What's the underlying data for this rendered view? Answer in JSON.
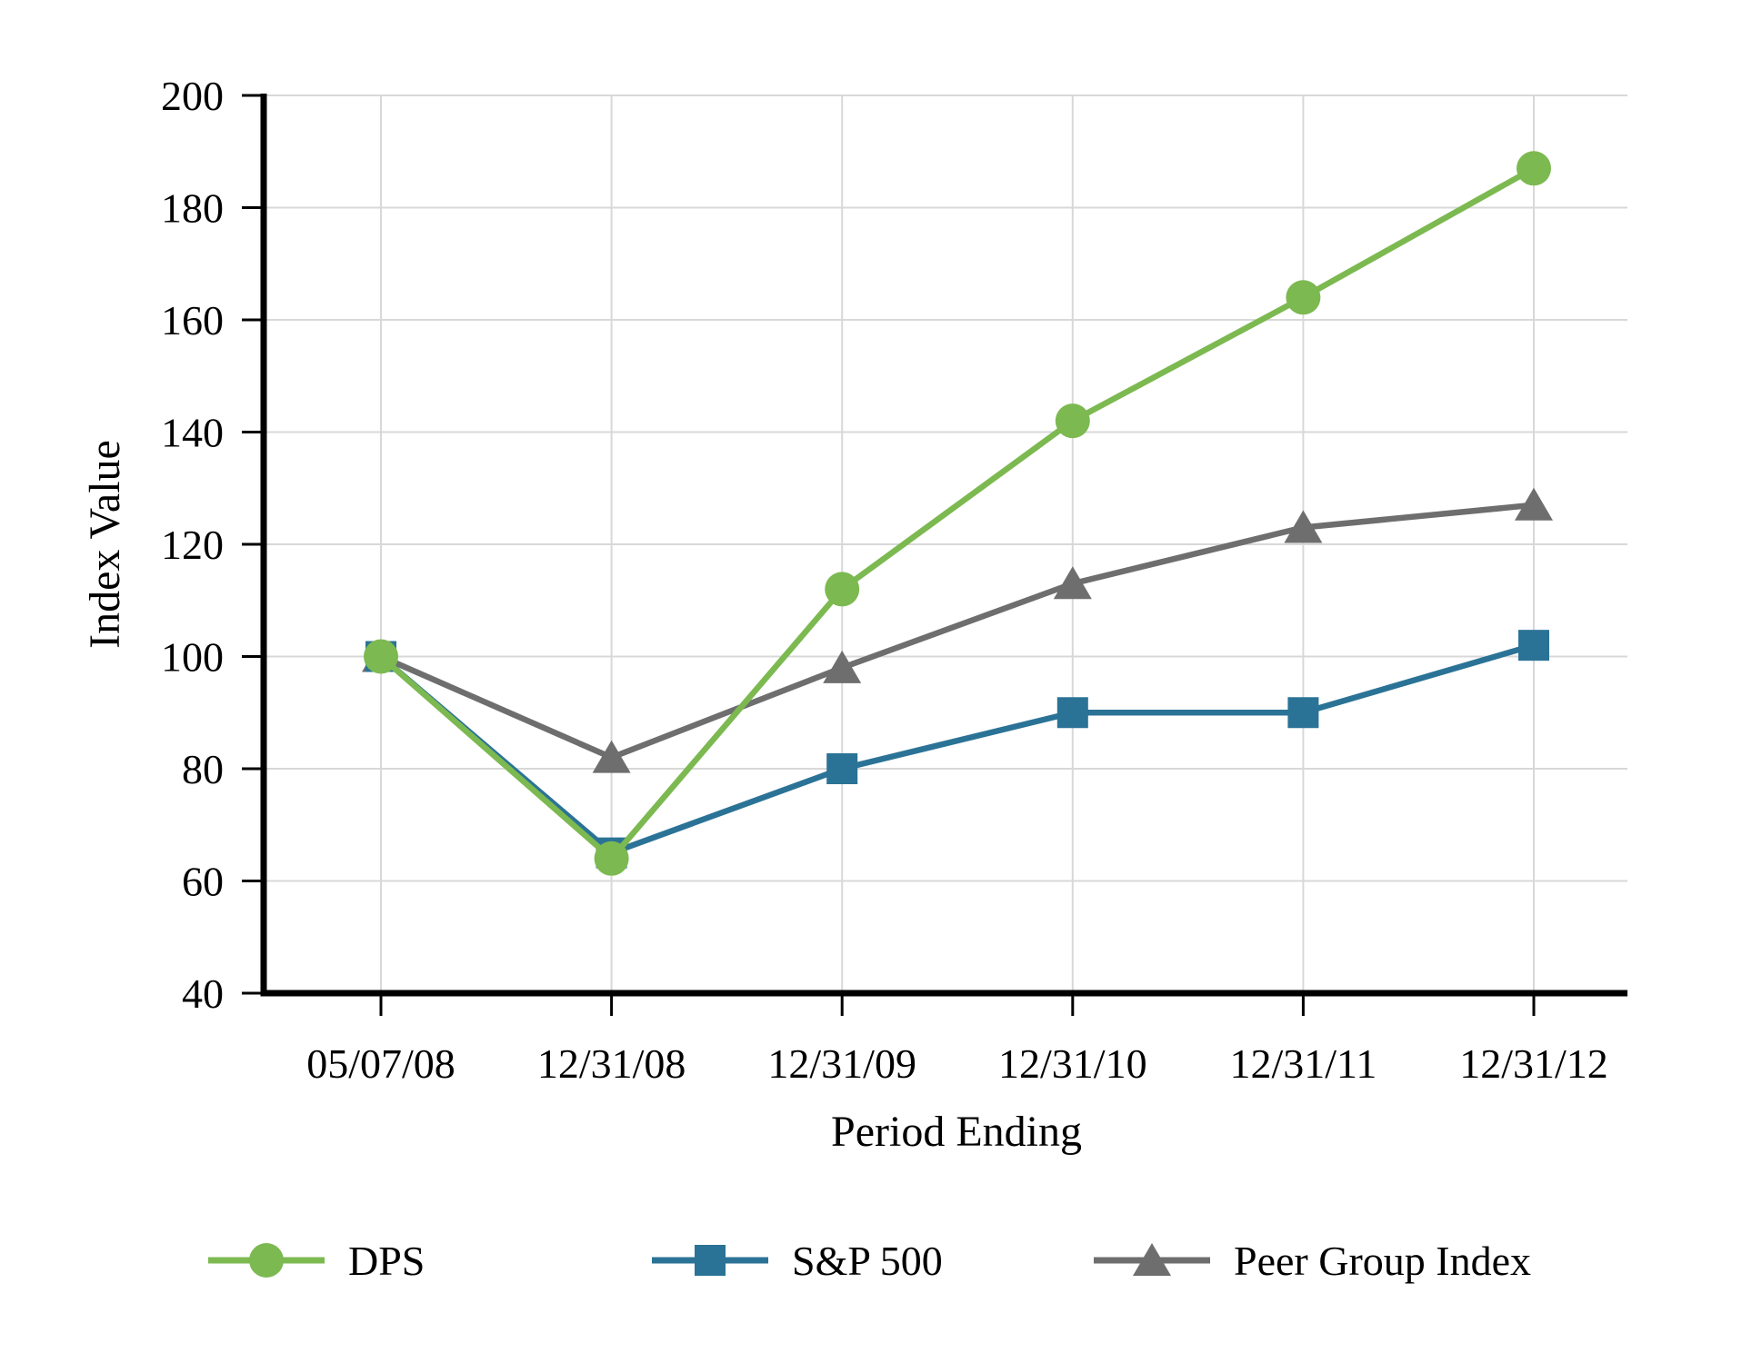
{
  "chart_data": {
    "type": "line",
    "xlabel": "Period Ending",
    "ylabel": "Index Value",
    "categories": [
      "05/07/08",
      "12/31/08",
      "12/31/09",
      "12/31/10",
      "12/31/11",
      "12/31/12"
    ],
    "series": [
      {
        "name": "DPS",
        "marker": "circle",
        "color": "#7CB950",
        "values": [
          100,
          64,
          112,
          142,
          164,
          187
        ]
      },
      {
        "name": "S&P 500",
        "marker": "square",
        "color": "#2B7396",
        "values": [
          100,
          65,
          80,
          90,
          90,
          102
        ]
      },
      {
        "name": "Peer Group Index",
        "marker": "triangle",
        "color": "#6E6E6E",
        "values": [
          100,
          82,
          98,
          113,
          123,
          127
        ]
      }
    ],
    "ylim": [
      40,
      200
    ],
    "ytick_step": 20,
    "grid": true,
    "legend_position": "bottom"
  },
  "colors": {
    "grid": "#D8D8D8",
    "axis": "#000000",
    "background": "#FFFFFF",
    "text": "#000000"
  }
}
